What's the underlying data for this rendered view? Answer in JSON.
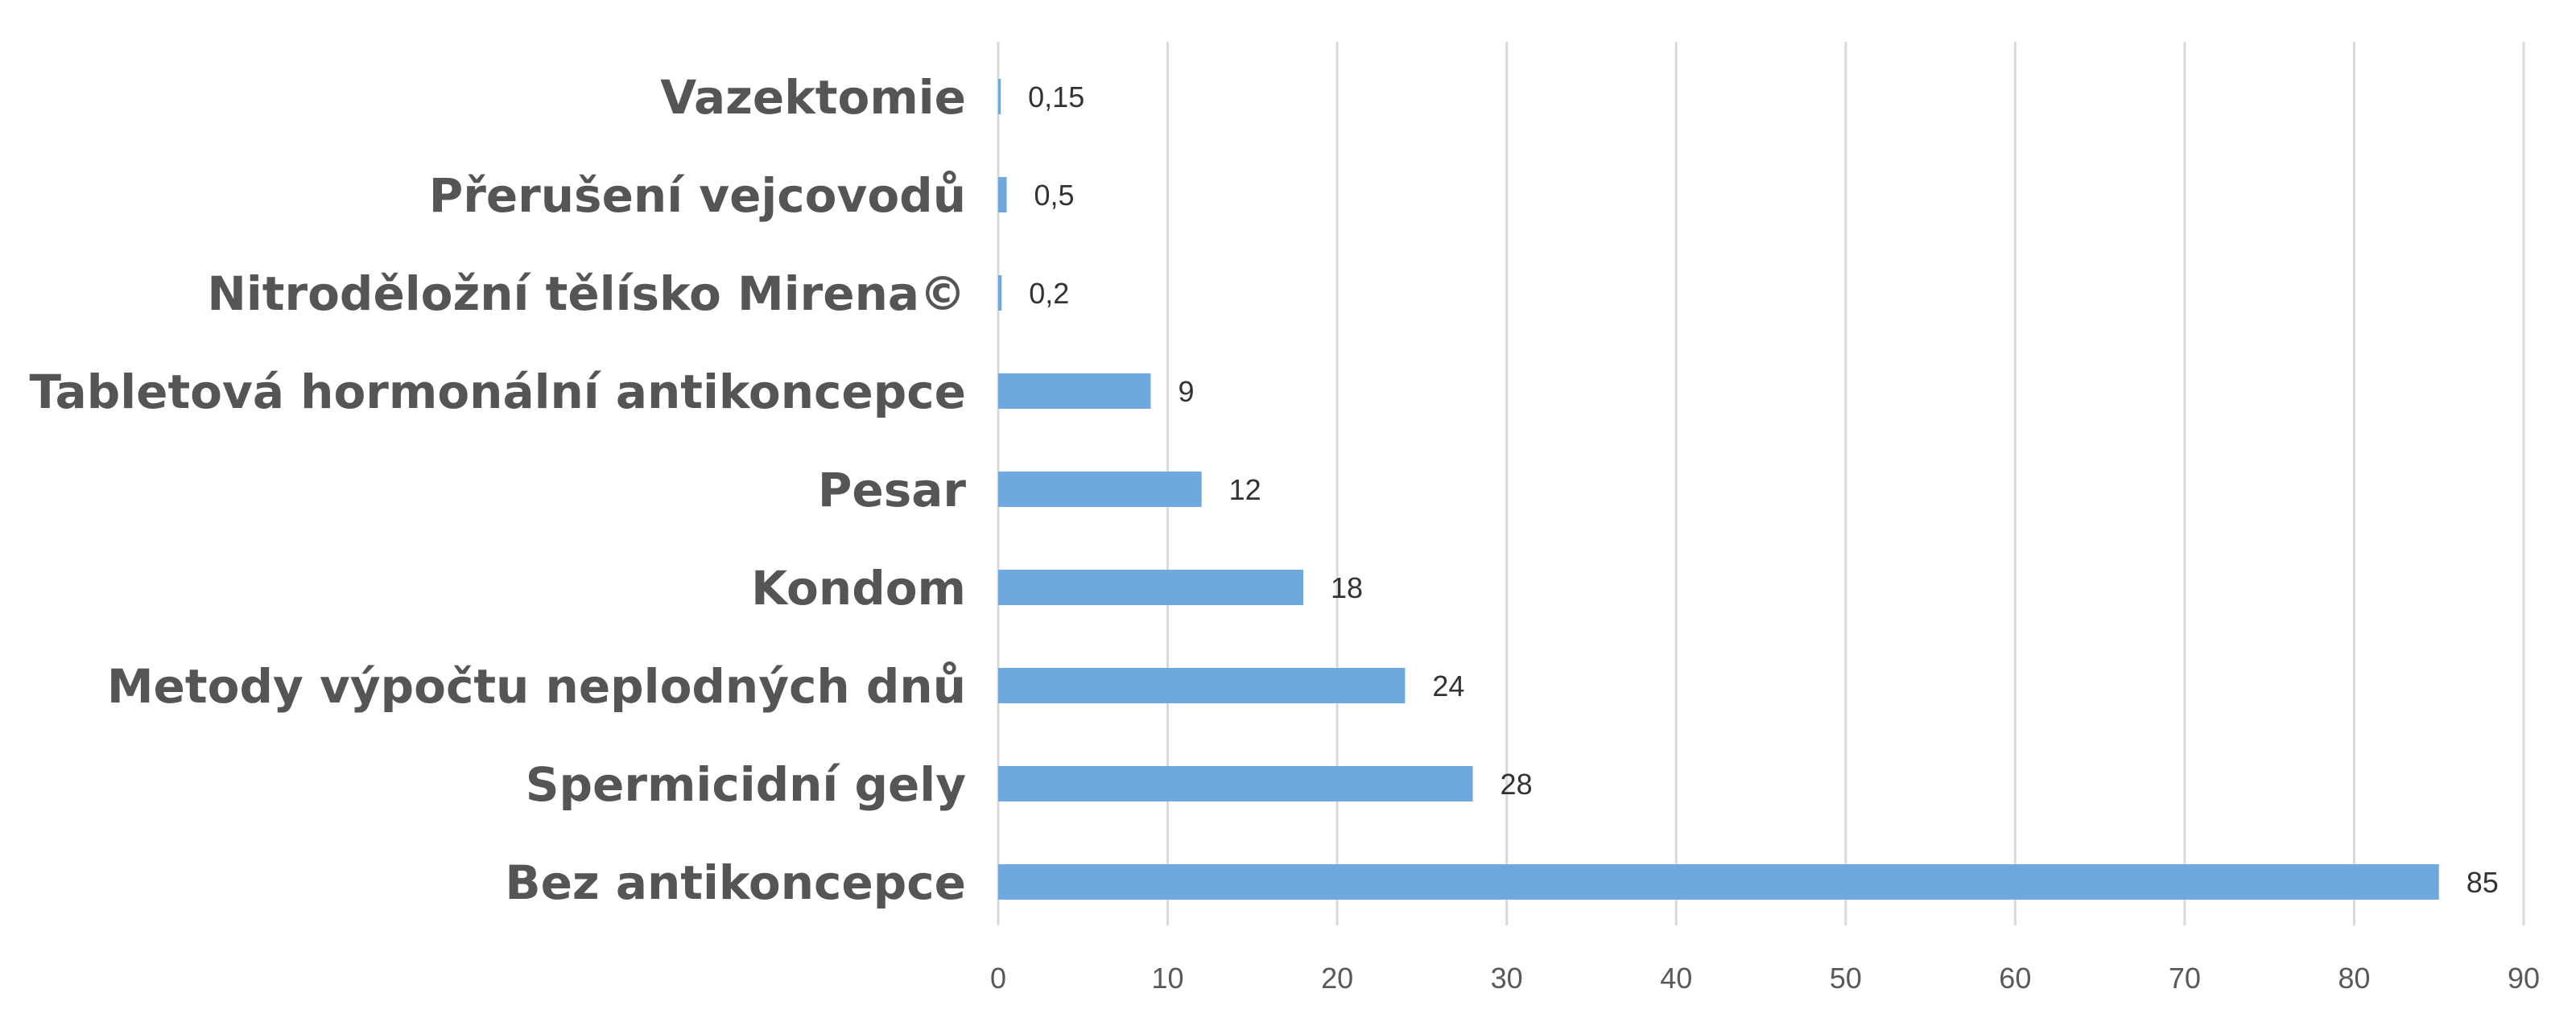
{
  "chart_data": {
    "type": "bar",
    "orientation": "horizontal",
    "categories": [
      "Vazektomie",
      "Přerušení vejcovodů",
      "Nitroděložní tělísko Mirena©",
      "Tabletová hormonální antikoncepce",
      "Pesar",
      "Kondom",
      "Metody výpočtu neplodných dnů",
      "Spermicidní gely",
      "Bez antikoncepce"
    ],
    "values": [
      0.15,
      0.5,
      0.2,
      9,
      12,
      18,
      24,
      28,
      85
    ],
    "value_labels": [
      "0,15",
      "0,5",
      "0,2",
      "9",
      "12",
      "18",
      "24",
      "28",
      "85"
    ],
    "x_ticks": [
      "0",
      "10",
      "20",
      "30",
      "40",
      "50",
      "60",
      "70",
      "80",
      "90"
    ],
    "xlim": [
      0,
      90
    ],
    "grid": "vertical",
    "legend": "none",
    "bar_color": "#6fa8dc",
    "title": "",
    "xlabel": "",
    "ylabel": ""
  }
}
